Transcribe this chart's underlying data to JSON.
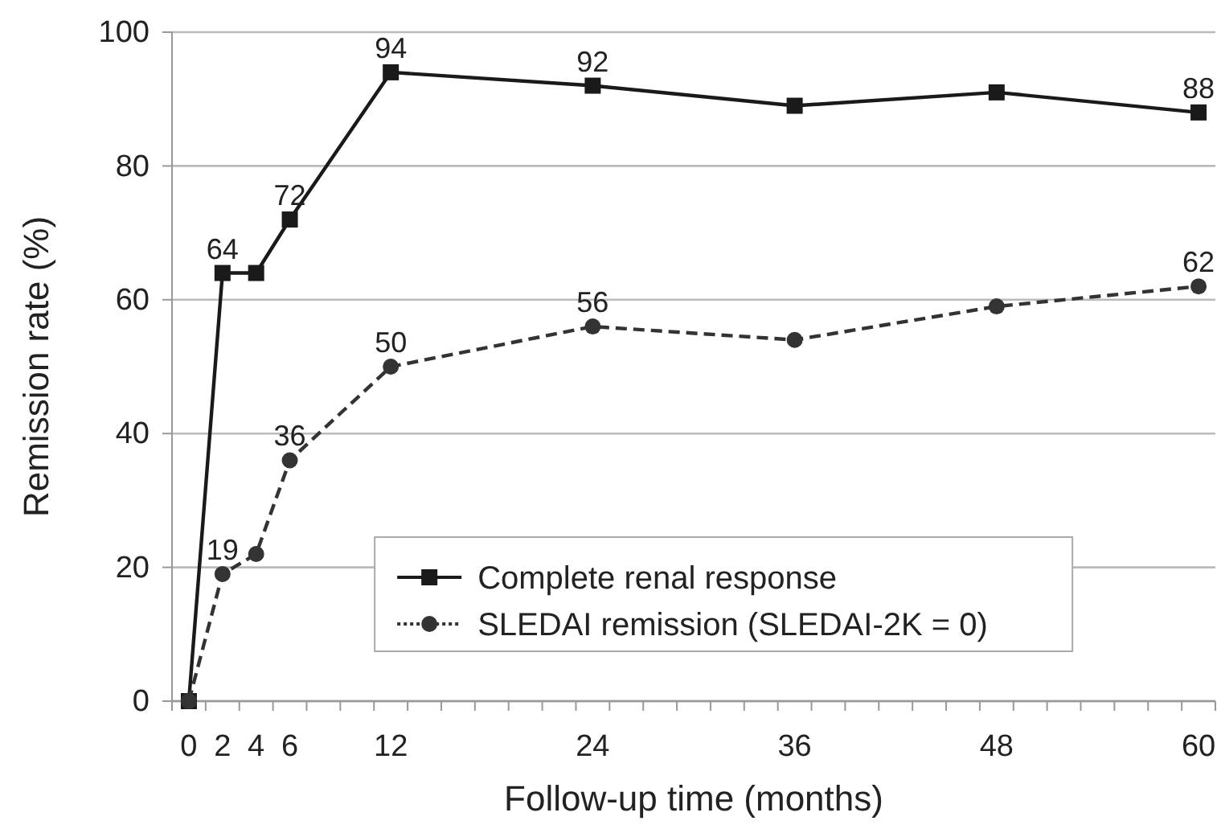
{
  "chart_data": {
    "type": "line",
    "xlabel": "Follow-up time (months)",
    "ylabel": "Remission rate (%)",
    "xlim": [
      -1,
      61
    ],
    "ylim": [
      0,
      100
    ],
    "yticks": [
      0,
      20,
      40,
      60,
      80,
      100
    ],
    "xticks": [
      0,
      2,
      4,
      6,
      12,
      24,
      36,
      48,
      60,
      {
        "value": -1,
        "label": null
      },
      {
        "value": 1,
        "label": null
      },
      {
        "value": 3,
        "label": null
      },
      {
        "value": 5,
        "label": null
      },
      {
        "value": 7,
        "label": null
      },
      {
        "value": 9,
        "label": null
      },
      {
        "value": 11,
        "label": null
      },
      {
        "value": 13,
        "label": null
      },
      {
        "value": 15,
        "label": null
      },
      {
        "value": 17,
        "label": null
      },
      {
        "value": 19,
        "label": null
      },
      {
        "value": 21,
        "label": null
      },
      {
        "value": 23,
        "label": null
      },
      {
        "value": 25,
        "label": null
      },
      {
        "value": 27,
        "label": null
      },
      {
        "value": 29,
        "label": null
      },
      {
        "value": 31,
        "label": null
      },
      {
        "value": 33,
        "label": null
      },
      {
        "value": 35,
        "label": null
      },
      {
        "value": 37,
        "label": null
      },
      {
        "value": 39,
        "label": null
      },
      {
        "value": 41,
        "label": null
      },
      {
        "value": 43,
        "label": null
      },
      {
        "value": 45,
        "label": null
      },
      {
        "value": 47,
        "label": null
      },
      {
        "value": 49,
        "label": null
      },
      {
        "value": 51,
        "label": null
      },
      {
        "value": 53,
        "label": null
      },
      {
        "value": 55,
        "label": null
      },
      {
        "value": 57,
        "label": null
      },
      {
        "value": 59,
        "label": null
      },
      {
        "value": 61,
        "label": null
      }
    ],
    "x": [
      0,
      2,
      4,
      6,
      12,
      24,
      36,
      48,
      60
    ],
    "series": [
      {
        "name": "Complete renal response",
        "color": "#1a1a1a",
        "marker": "square",
        "line_style": "solid",
        "values": [
          0,
          64,
          64,
          72,
          94,
          92,
          89,
          91,
          88
        ],
        "value_labels": [
          null,
          "64",
          null,
          "72",
          "94",
          "92",
          null,
          null,
          "88"
        ]
      },
      {
        "name": "SLEDAI remission (SLEDAI-2K = 0)",
        "color": "#333333",
        "marker": "circle",
        "line_style": "dashed",
        "values": [
          0,
          19,
          22,
          36,
          50,
          56,
          54,
          59,
          62
        ],
        "value_labels": [
          null,
          "19",
          null,
          "36",
          "50",
          "56",
          null,
          null,
          "62"
        ]
      }
    ],
    "grid": "y",
    "legend": "bottom"
  }
}
